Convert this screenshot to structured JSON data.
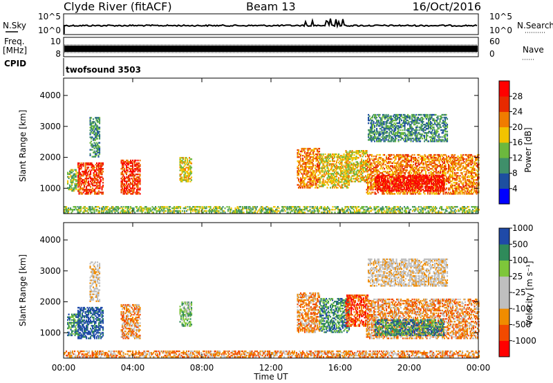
{
  "header": {
    "station": "Clyde River (fitACF)",
    "beam": "Beam 13",
    "date": "16/Oct/2016"
  },
  "strip_labels": {
    "nsky": "N.Sky",
    "nsearch": "N.Search",
    "freq_line1": "Freq.",
    "freq_line2": "[MHz]",
    "nave": "Nave",
    "cpid": "CPID",
    "cpid_value": "twofsound 3503",
    "noise_top": "10^5",
    "noise_bottom": "10^0",
    "freq_left_top": "10",
    "freq_left_bottom": "8",
    "nave_top": "60",
    "nave_bottom": "0"
  },
  "colors": {
    "power": [
      "#0000ff",
      "#1d4fa0",
      "#3f8f6a",
      "#6cb83e",
      "#f2c300",
      "#f07c00",
      "#e82a00",
      "#ff0000"
    ],
    "velocity": [
      "#ff0000",
      "#f24a00",
      "#f08c00",
      "#bfbfbf",
      "#bfbfbf",
      "#7ec63a",
      "#2f8a5a",
      "#1f4aa8"
    ]
  },
  "chart_data": [
    {
      "type": "heatmap",
      "name": "power",
      "ylabel": "Slant Range [km]",
      "colorbar_label": "Power [dB]",
      "colorbar_ticks": [
        "4",
        "8",
        "12",
        "16",
        "20",
        "24",
        "28"
      ],
      "x_ticks": [
        "00:00",
        "04:00",
        "08:00",
        "12:00",
        "16:00",
        "20:00",
        "00:00"
      ],
      "y_ticks": [
        "1000",
        "2000",
        "3000",
        "4000"
      ],
      "xlim_hours": [
        0,
        24
      ],
      "ylim_km": [
        180,
        4560
      ],
      "clim": [
        0,
        32
      ],
      "echo_regions": [
        {
          "t0": 0.2,
          "t1": 0.9,
          "r0": 900,
          "r1": 1600,
          "level": 3
        },
        {
          "t0": 0.8,
          "t1": 2.3,
          "r0": 800,
          "r1": 1800,
          "level": 6
        },
        {
          "t0": 1.5,
          "t1": 2.1,
          "r0": 2000,
          "r1": 3300,
          "level": 2
        },
        {
          "t0": 3.3,
          "t1": 4.4,
          "r0": 800,
          "r1": 1900,
          "level": 6
        },
        {
          "t0": 6.7,
          "t1": 7.4,
          "r0": 1200,
          "r1": 2000,
          "level": 4
        },
        {
          "t0": 13.5,
          "t1": 14.8,
          "r0": 1000,
          "r1": 2300,
          "level": 5
        },
        {
          "t0": 14.8,
          "t1": 16.5,
          "r0": 1000,
          "r1": 2100,
          "level": 4
        },
        {
          "t0": 16.3,
          "t1": 17.6,
          "r0": 1200,
          "r1": 2200,
          "level": 4
        },
        {
          "t0": 17.5,
          "t1": 24.0,
          "r0": 800,
          "r1": 2100,
          "level": 5
        },
        {
          "t0": 18.0,
          "t1": 22.0,
          "r0": 900,
          "r1": 1400,
          "level": 7
        },
        {
          "t0": 17.6,
          "t1": 22.2,
          "r0": 2500,
          "r1": 3400,
          "level": 2
        },
        {
          "t0": 0.0,
          "t1": 24.0,
          "r0": 200,
          "r1": 420,
          "level": 3
        }
      ]
    },
    {
      "type": "heatmap",
      "name": "velocity",
      "ylabel": "Slant Range [km]",
      "xlabel": "Time UT",
      "colorbar_label": "Velocity [m s⁻¹]",
      "colorbar_ticks": [
        "-1000",
        "-500",
        "-100",
        "-25",
        "25",
        "100",
        "500",
        "1000"
      ],
      "x_ticks": [
        "00:00",
        "04:00",
        "08:00",
        "12:00",
        "16:00",
        "20:00",
        "00:00"
      ],
      "y_ticks": [
        "1000",
        "2000",
        "3000",
        "4000"
      ],
      "xlim_hours": [
        0,
        24
      ],
      "ylim_km": [
        180,
        4560
      ],
      "clim_ms": [
        -1200,
        1200
      ],
      "echo_regions": [
        {
          "t0": 0.2,
          "t1": 0.9,
          "r0": 900,
          "r1": 1600,
          "level": 6
        },
        {
          "t0": 0.8,
          "t1": 2.3,
          "r0": 800,
          "r1": 1800,
          "level": 7
        },
        {
          "t0": 1.5,
          "t1": 2.1,
          "r0": 2000,
          "r1": 3300,
          "level": 3
        },
        {
          "t0": 3.3,
          "t1": 4.4,
          "r0": 800,
          "r1": 1900,
          "level": 2
        },
        {
          "t0": 6.7,
          "t1": 7.4,
          "r0": 1200,
          "r1": 2000,
          "level": 5
        },
        {
          "t0": 13.5,
          "t1": 14.8,
          "r0": 1000,
          "r1": 2300,
          "level": 2
        },
        {
          "t0": 14.8,
          "t1": 16.5,
          "r0": 1000,
          "r1": 2100,
          "level": 6
        },
        {
          "t0": 16.3,
          "t1": 17.6,
          "r0": 1200,
          "r1": 2200,
          "level": 1
        },
        {
          "t0": 17.5,
          "t1": 24.0,
          "r0": 800,
          "r1": 2100,
          "level": 2
        },
        {
          "t0": 18.0,
          "t1": 22.0,
          "r0": 900,
          "r1": 1400,
          "level": 6
        },
        {
          "t0": 17.6,
          "t1": 22.2,
          "r0": 2500,
          "r1": 3400,
          "level": 3
        },
        {
          "t0": 0.0,
          "t1": 24.0,
          "r0": 200,
          "r1": 420,
          "level": 2
        }
      ]
    }
  ]
}
